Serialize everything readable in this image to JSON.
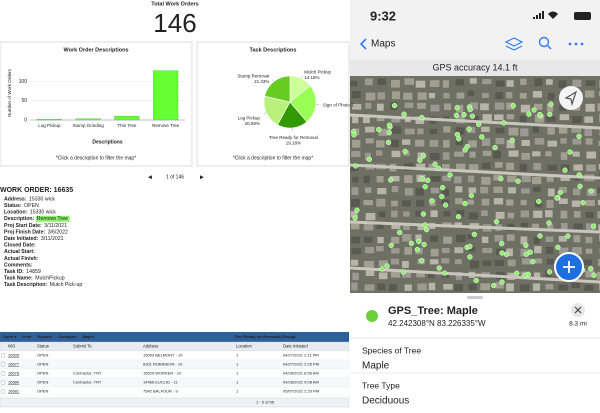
{
  "dashboard": {
    "title": "Total Work Orders",
    "total": 146,
    "bar_chart": {
      "type": "bar",
      "title": "Work Order Descriptions",
      "y_label": "Number of Work Orders",
      "x_label": "Descriptions",
      "categories": [
        "Log Pickup",
        "Stump Grinding",
        "Thin Tree",
        "Remove Tree"
      ],
      "values": [
        2,
        3,
        10,
        128
      ],
      "color": "#66ff33",
      "ylim": [
        0,
        140
      ],
      "yticks": [
        0,
        50,
        100
      ],
      "grid": true,
      "note": "*Click a description to filter the map*"
    },
    "pie_chart": {
      "type": "pie",
      "title": "Task Descriptions",
      "slices": [
        {
          "name": "Mulch Pickup",
          "value": 14.18,
          "label": "14.18%",
          "color": "#ccff99"
        },
        {
          "name": "Sign of Photo T..",
          "value": 24.62,
          "color": "#99ff55"
        },
        {
          "name": "Tree Ready for Removal",
          "value": 19.18,
          "label": "19.18%",
          "color": "#339900"
        },
        {
          "name": "Log Pickup",
          "value": 20.59,
          "label": "20.59%",
          "color": "#b8f07a"
        },
        {
          "name": "Stump Removal",
          "value": 21.43,
          "label": "21.43%",
          "color": "#66cc22"
        }
      ],
      "note": "*Click a description to filter the map*"
    },
    "pager": "1 of 146"
  },
  "work_order": {
    "title": "WORK ORDER: 16635",
    "fields": [
      {
        "label": "Address:",
        "value": "15330 wick"
      },
      {
        "label": "Status:",
        "value": "OPEN"
      },
      {
        "label": "Location:",
        "value": "15330 wick"
      },
      {
        "label": "Description:",
        "value": "Remove Tree",
        "highlight": true
      },
      {
        "label": "Proj Start Date:",
        "value": "3/11/2021"
      },
      {
        "label": "Proj Finish Date:",
        "value": "3/6/2022"
      },
      {
        "label": "Date Initiated:",
        "value": "3/11/2021"
      },
      {
        "label": "Closed Date:"
      },
      {
        "label": "Actual Start:"
      },
      {
        "label": "Actual Finish:"
      },
      {
        "label": "Comments:"
      },
      {
        "label": "Task ID:",
        "value": "14859"
      },
      {
        "label": "Task Name:",
        "value": "MulchPickup"
      },
      {
        "label": "Task Description:",
        "value": "Mulch Pick-up"
      }
    ]
  },
  "table": {
    "title": "Tree Ready for Removal (Group)",
    "toolbar": [
      "Open ▾",
      "Print",
      "Expand",
      "Configure",
      "Map ▾"
    ],
    "columns": [
      "WO",
      "Status",
      "Submit To",
      "Address",
      "Location",
      "Date Initiated"
    ],
    "rows": [
      [
        "16606",
        "OPEN",
        null,
        "15063 BELMONT - 10",
        "1",
        "04/27/2021 2:11 PM"
      ],
      [
        "16677",
        "OPEN",
        null,
        "8301 ROBINSON - 10",
        "1",
        "04/27/2021 2:26 PM"
      ],
      [
        "16678",
        "OPEN",
        "Contractor, TNT",
        "15529 WORKER - 10",
        "1",
        "04/28/2021 8:56 AM"
      ],
      [
        "16680",
        "OPEN",
        "Contractor, TNT",
        "14466 EUCLID - 11",
        "1",
        "04/28/2021 9:08 AM"
      ],
      [
        "16681",
        "OPEN",
        null,
        "7542 BALFOUR - 9",
        "1",
        "05/07/2021 2:20 PM"
      ]
    ],
    "footer": "1 - 5 of 55"
  },
  "phone": {
    "time": "9:32",
    "back": "Maps",
    "gps": "GPS accuracy 14.1 ft",
    "feature": {
      "title": "GPS_Tree: Maple",
      "coords": "42.242308°N 83.226335°W",
      "distance": "8.3 mi",
      "attributes": [
        {
          "label": "Species of Tree",
          "value": "Maple"
        },
        {
          "label": "Tree Type",
          "value": "Deciduous"
        }
      ]
    }
  }
}
